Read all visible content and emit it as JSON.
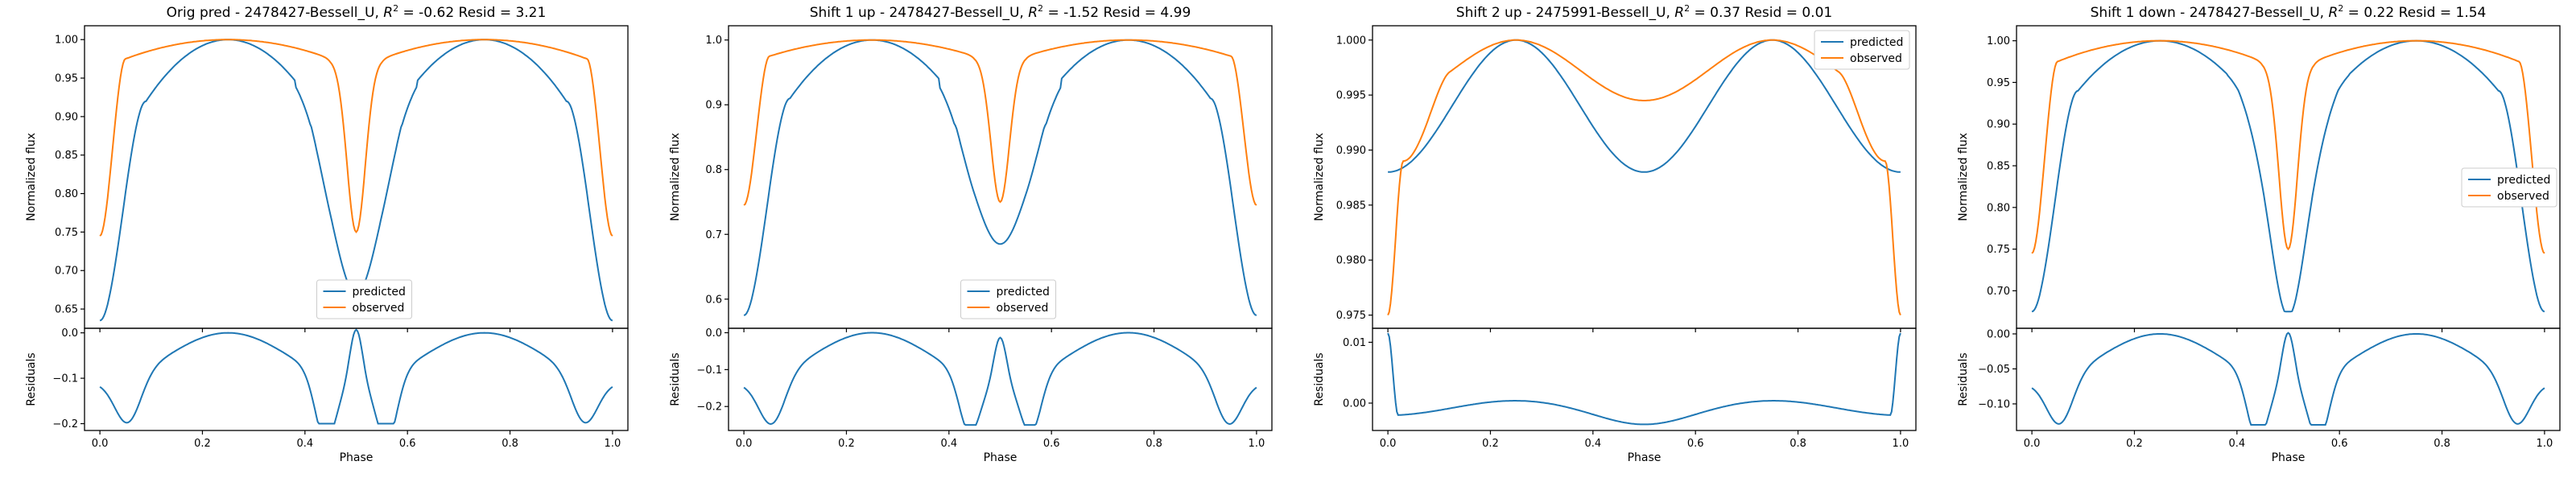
{
  "colors": {
    "predicted": "#1f77b4",
    "observed": "#ff7f0e"
  },
  "chart_data": [
    {
      "type": "line",
      "title": "Orig pred - 2478427-Bessell_U, $R^2 = $-0.62 Resid = 3.21",
      "title_parts": {
        "prefix": "Orig pred - 2478427-Bessell_U, ",
        "r2": "R",
        "sup": "2",
        "suffix": " = -0.62 Resid = 3.21"
      },
      "main": {
        "ylabel": "Normalized flux",
        "ylim": [
          0.625,
          1.018
        ],
        "yticks": [
          0.65,
          0.7,
          0.75,
          0.8,
          0.85,
          0.9,
          0.95,
          1.0
        ],
        "ytick_labels": [
          "0.65",
          "0.70",
          "0.75",
          "0.80",
          "0.85",
          "0.90",
          "0.95",
          "1.00"
        ],
        "legend": "lower-center",
        "series": [
          {
            "name": "predicted",
            "min": 0.635,
            "max": 1.0,
            "eclipse_min": 0.7,
            "eclipse_width": 0.045,
            "shoulder": 0.92,
            "profile": "predicted"
          },
          {
            "name": "observed",
            "min": 0.745,
            "max": 1.0,
            "eclipse_min": 0.75,
            "eclipse_width": 0.018,
            "shoulder": 0.975,
            "profile": "observed"
          }
        ]
      },
      "resid": {
        "ylabel": "Residuals",
        "ylim": [
          -0.215,
          0.01
        ],
        "yticks": [
          -0.2,
          -0.1,
          0.0
        ],
        "ytick_labels": [
          "−0.2",
          "−0.1",
          "0.0"
        ],
        "min": -0.2,
        "dip": -0.16
      },
      "xlabel": "Phase",
      "xticks": [
        0.0,
        0.2,
        0.4,
        0.6,
        0.8,
        1.0
      ],
      "xtick_labels": [
        "0.0",
        "0.2",
        "0.4",
        "0.6",
        "0.8",
        "1.0"
      ]
    },
    {
      "type": "line",
      "title": "Shift 1 up - 2478427-Bessell_U, $R^2 = $-1.52 Resid = 4.99",
      "title_parts": {
        "prefix": "Shift 1 up - 2478427-Bessell_U, ",
        "r2": "R",
        "sup": "2",
        "suffix": " = -1.52 Resid = 4.99"
      },
      "main": {
        "ylabel": "Normalized flux",
        "ylim": [
          0.555,
          1.022
        ],
        "yticks": [
          0.6,
          0.7,
          0.8,
          0.9,
          1.0
        ],
        "ytick_labels": [
          "0.6",
          "0.7",
          "0.8",
          "0.9",
          "1.0"
        ],
        "legend": "lower-center",
        "series": [
          {
            "name": "predicted",
            "min": 0.575,
            "max": 1.0,
            "eclipse_min": 0.715,
            "eclipse_width": 0.05,
            "shoulder": 0.91,
            "profile": "predicted"
          },
          {
            "name": "observed",
            "min": 0.745,
            "max": 1.0,
            "eclipse_min": 0.75,
            "eclipse_width": 0.018,
            "shoulder": 0.975,
            "profile": "observed"
          }
        ]
      },
      "resid": {
        "ylabel": "Residuals",
        "ylim": [
          -0.265,
          0.012
        ],
        "yticks": [
          -0.2,
          -0.1,
          0.0
        ],
        "ytick_labels": [
          "−0.2",
          "−0.1",
          "0.0"
        ],
        "min": -0.25,
        "dip": -0.17
      },
      "xlabel": "Phase",
      "xticks": [
        0.0,
        0.2,
        0.4,
        0.6,
        0.8,
        1.0
      ],
      "xtick_labels": [
        "0.0",
        "0.2",
        "0.4",
        "0.6",
        "0.8",
        "1.0"
      ]
    },
    {
      "type": "line",
      "title": "Shift 2 up - 2475991-Bessell_U, $R^2 = $0.37 Resid = 0.01",
      "title_parts": {
        "prefix": "Shift 2 up - 2475991-Bessell_U, ",
        "r2": "R",
        "sup": "2",
        "suffix": " = 0.37 Resid = 0.01"
      },
      "main": {
        "ylabel": "Normalized flux",
        "ylim": [
          0.9738,
          1.0013
        ],
        "yticks": [
          0.975,
          0.98,
          0.985,
          0.99,
          0.995,
          1.0
        ],
        "ytick_labels": [
          "0.975",
          "0.980",
          "0.985",
          "0.990",
          "0.995",
          "1.000"
        ],
        "legend": "upper-right",
        "series": [
          {
            "name": "predicted",
            "min": 0.987,
            "max": 1.0,
            "mid": 0.988,
            "profile": "predicted_shallow"
          },
          {
            "name": "observed",
            "min": 0.975,
            "max": 1.0,
            "mid": 0.9945,
            "profile": "observed_shallow"
          }
        ]
      },
      "resid": {
        "ylabel": "Residuals",
        "ylim": [
          -0.0045,
          0.0123
        ],
        "yticks": [
          0.0,
          0.01
        ],
        "ytick_labels": [
          "0.00",
          "0.01"
        ],
        "edge": 0.0115,
        "base": -0.002,
        "low": -0.0035
      },
      "xlabel": "Phase",
      "xticks": [
        0.0,
        0.2,
        0.4,
        0.6,
        0.8,
        1.0
      ],
      "xtick_labels": [
        "0.0",
        "0.2",
        "0.4",
        "0.6",
        "0.8",
        "1.0"
      ]
    },
    {
      "type": "line",
      "title": "Shift 1 down - 2478427-Bessell_U, $R^2 = $0.22 Resid = 1.54",
      "title_parts": {
        "prefix": "Shift 1 down - 2478427-Bessell_U, ",
        "r2": "R",
        "sup": "2",
        "suffix": " = 0.22 Resid = 1.54"
      },
      "main": {
        "ylabel": "Normalized flux",
        "ylim": [
          0.655,
          1.018
        ],
        "yticks": [
          0.7,
          0.75,
          0.8,
          0.85,
          0.9,
          0.95,
          1.0
        ],
        "ytick_labels": [
          "0.70",
          "0.75",
          "0.80",
          "0.85",
          "0.90",
          "0.95",
          "1.00"
        ],
        "legend": "center-right",
        "series": [
          {
            "name": "predicted",
            "min": 0.675,
            "max": 1.0,
            "eclipse_min": 0.7,
            "eclipse_width": 0.035,
            "shoulder": 0.94,
            "profile": "predicted"
          },
          {
            "name": "observed",
            "min": 0.745,
            "max": 1.0,
            "eclipse_min": 0.75,
            "eclipse_width": 0.018,
            "shoulder": 0.975,
            "profile": "observed"
          }
        ]
      },
      "resid": {
        "ylabel": "Residuals",
        "ylim": [
          -0.138,
          0.008
        ],
        "yticks": [
          -0.1,
          -0.05,
          0.0
        ],
        "ytick_labels": [
          "−0.10",
          "−0.05",
          "0.00"
        ],
        "min": -0.13,
        "dip": -0.1
      },
      "xlabel": "Phase",
      "xticks": [
        0.0,
        0.2,
        0.4,
        0.6,
        0.8,
        1.0
      ],
      "xtick_labels": [
        "0.0",
        "0.2",
        "0.4",
        "0.6",
        "0.8",
        "1.0"
      ]
    }
  ]
}
